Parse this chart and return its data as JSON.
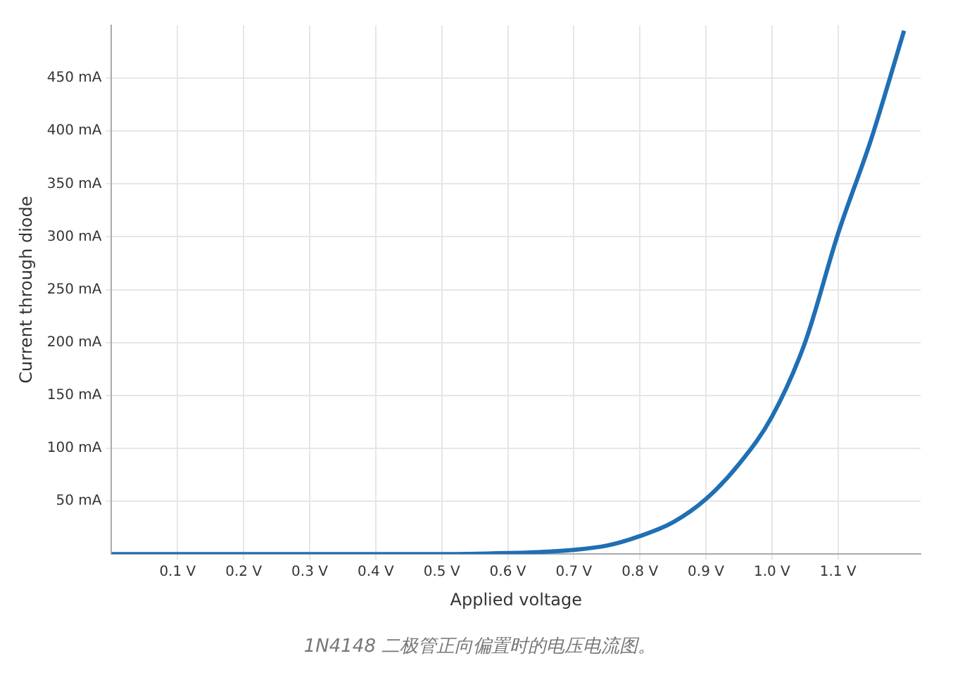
{
  "chart_data": {
    "type": "line",
    "xlabel": "Applied voltage",
    "ylabel": "Current through diode",
    "annotations": [
      "1N4148 二极管正向偏置时的电压电流图。"
    ],
    "series": [
      {
        "color": "#1f6fb4",
        "x": [
          0,
          0.1,
          0.2,
          0.3,
          0.4,
          0.5,
          0.6,
          0.65,
          0.7,
          0.75,
          0.8,
          0.85,
          0.9,
          0.95,
          1.0,
          1.05,
          1.1,
          1.15,
          1.2
        ],
        "values": [
          0,
          0,
          0,
          0,
          0,
          0,
          1,
          2,
          4,
          8,
          17,
          30,
          52,
          85,
          130,
          200,
          303,
          392,
          495
        ]
      }
    ],
    "xlim": [
      0,
      1.225
    ],
    "ylim": [
      0,
      500
    ],
    "xticks": [
      {
        "value": 0.1,
        "label": "0.1 V"
      },
      {
        "value": 0.2,
        "label": "0.2 V"
      },
      {
        "value": 0.3,
        "label": "0.3 V"
      },
      {
        "value": 0.4,
        "label": "0.4 V"
      },
      {
        "value": 0.5,
        "label": "0.5 V"
      },
      {
        "value": 0.6,
        "label": "0.6 V"
      },
      {
        "value": 0.7,
        "label": "0.7 V"
      },
      {
        "value": 0.8,
        "label": "0.8 V"
      },
      {
        "value": 0.9,
        "label": "0.9 V"
      },
      {
        "value": 1.0,
        "label": "1.0 V"
      },
      {
        "value": 1.1,
        "label": "1.1 V"
      }
    ],
    "yticks": [
      {
        "value": 50,
        "label": "50 mA"
      },
      {
        "value": 100,
        "label": "100 mA"
      },
      {
        "value": 150,
        "label": "150 mA"
      },
      {
        "value": 200,
        "label": "200 mA"
      },
      {
        "value": 250,
        "label": "250 mA"
      },
      {
        "value": 300,
        "label": "300 mA"
      },
      {
        "value": 350,
        "label": "350 mA"
      },
      {
        "value": 400,
        "label": "400 mA"
      },
      {
        "value": 450,
        "label": "450 mA"
      }
    ],
    "grid": true,
    "marker": "none",
    "line_style": "solid"
  }
}
